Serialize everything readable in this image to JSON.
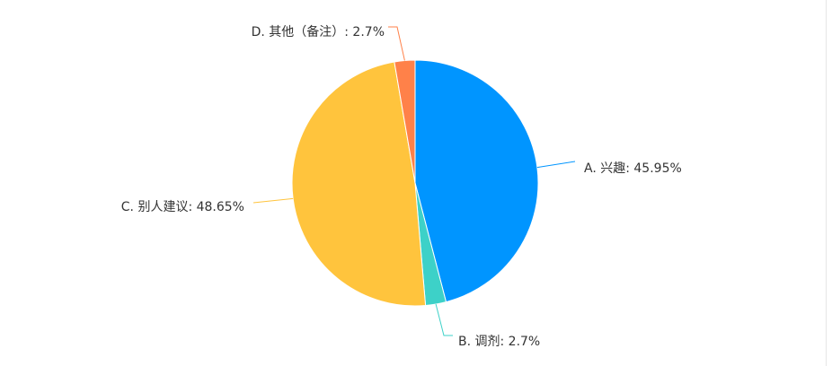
{
  "chart_data": {
    "type": "pie",
    "slices": [
      {
        "label": "A. 兴趣: 45.95%",
        "value": 45.95,
        "color": "#0095FF"
      },
      {
        "label": "B. 调剂: 2.7%",
        "value": 2.7,
        "color": "#3DD1C8"
      },
      {
        "label": "C. 别人建议: 48.65%",
        "value": 48.65,
        "color": "#FFC43D"
      },
      {
        "label": "D. 其他（备注）: 2.7%",
        "value": 2.7,
        "color": "#FF8149"
      }
    ]
  }
}
